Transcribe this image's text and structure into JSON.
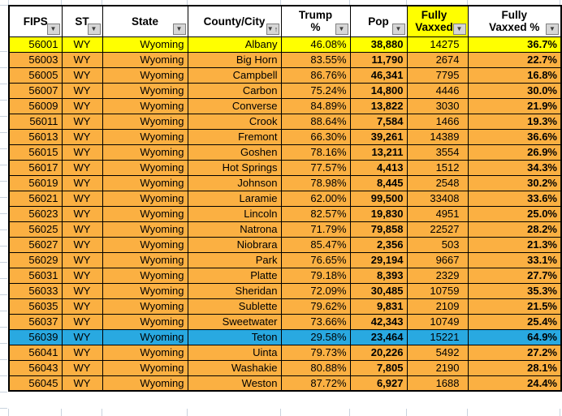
{
  "table": {
    "headers": [
      {
        "id": "fips",
        "lines": [
          "FIPS"
        ],
        "sorted": false,
        "highlight": "header_bg"
      },
      {
        "id": "st",
        "lines": [
          "ST"
        ],
        "sorted": false,
        "highlight": "header_bg"
      },
      {
        "id": "state",
        "lines": [
          "State"
        ],
        "sorted": false,
        "highlight": "header_bg"
      },
      {
        "id": "county-city",
        "lines": [
          "County/City"
        ],
        "sorted": true,
        "highlight": "header_bg"
      },
      {
        "id": "trump-pct",
        "lines": [
          "Trump",
          "%"
        ],
        "sorted": false,
        "highlight": "header_bg"
      },
      {
        "id": "pop",
        "lines": [
          "Pop"
        ],
        "sorted": false,
        "highlight": "header_bg"
      },
      {
        "id": "fully-vaxxed",
        "lines": [
          "Fully",
          "Vaxxed"
        ],
        "sorted": false,
        "highlight": "yellow"
      },
      {
        "id": "fully-vaxxed-pct",
        "lines": [
          "Fully",
          "Vaxxed %"
        ],
        "sorted": false,
        "highlight": "header_bg"
      }
    ],
    "rows": [
      {
        "cells": [
          "56001",
          "WY",
          "Wyoming",
          "Albany",
          "46.08%",
          "38,880",
          "14275",
          "36.7%"
        ],
        "highlight": "yellow"
      },
      {
        "cells": [
          "56003",
          "WY",
          "Wyoming",
          "Big Horn",
          "83.55%",
          "11,790",
          "2674",
          "22.7%"
        ],
        "highlight": "orange"
      },
      {
        "cells": [
          "56005",
          "WY",
          "Wyoming",
          "Campbell",
          "86.76%",
          "46,341",
          "7795",
          "16.8%"
        ],
        "highlight": "orange"
      },
      {
        "cells": [
          "56007",
          "WY",
          "Wyoming",
          "Carbon",
          "75.24%",
          "14,800",
          "4446",
          "30.0%"
        ],
        "highlight": "orange"
      },
      {
        "cells": [
          "56009",
          "WY",
          "Wyoming",
          "Converse",
          "84.89%",
          "13,822",
          "3030",
          "21.9%"
        ],
        "highlight": "orange"
      },
      {
        "cells": [
          "56011",
          "WY",
          "Wyoming",
          "Crook",
          "88.64%",
          "7,584",
          "1466",
          "19.3%"
        ],
        "highlight": "orange"
      },
      {
        "cells": [
          "56013",
          "WY",
          "Wyoming",
          "Fremont",
          "66.30%",
          "39,261",
          "14389",
          "36.6%"
        ],
        "highlight": "orange"
      },
      {
        "cells": [
          "56015",
          "WY",
          "Wyoming",
          "Goshen",
          "78.16%",
          "13,211",
          "3554",
          "26.9%"
        ],
        "highlight": "orange"
      },
      {
        "cells": [
          "56017",
          "WY",
          "Wyoming",
          "Hot Springs",
          "77.57%",
          "4,413",
          "1512",
          "34.3%"
        ],
        "highlight": "orange"
      },
      {
        "cells": [
          "56019",
          "WY",
          "Wyoming",
          "Johnson",
          "78.98%",
          "8,445",
          "2548",
          "30.2%"
        ],
        "highlight": "orange"
      },
      {
        "cells": [
          "56021",
          "WY",
          "Wyoming",
          "Laramie",
          "62.00%",
          "99,500",
          "33408",
          "33.6%"
        ],
        "highlight": "orange"
      },
      {
        "cells": [
          "56023",
          "WY",
          "Wyoming",
          "Lincoln",
          "82.57%",
          "19,830",
          "4951",
          "25.0%"
        ],
        "highlight": "orange"
      },
      {
        "cells": [
          "56025",
          "WY",
          "Wyoming",
          "Natrona",
          "71.79%",
          "79,858",
          "22527",
          "28.2%"
        ],
        "highlight": "orange"
      },
      {
        "cells": [
          "56027",
          "WY",
          "Wyoming",
          "Niobrara",
          "85.47%",
          "2,356",
          "503",
          "21.3%"
        ],
        "highlight": "orange"
      },
      {
        "cells": [
          "56029",
          "WY",
          "Wyoming",
          "Park",
          "76.65%",
          "29,194",
          "9667",
          "33.1%"
        ],
        "highlight": "orange"
      },
      {
        "cells": [
          "56031",
          "WY",
          "Wyoming",
          "Platte",
          "79.18%",
          "8,393",
          "2329",
          "27.7%"
        ],
        "highlight": "orange"
      },
      {
        "cells": [
          "56033",
          "WY",
          "Wyoming",
          "Sheridan",
          "72.09%",
          "30,485",
          "10759",
          "35.3%"
        ],
        "highlight": "orange"
      },
      {
        "cells": [
          "56035",
          "WY",
          "Wyoming",
          "Sublette",
          "79.62%",
          "9,831",
          "2109",
          "21.5%"
        ],
        "highlight": "orange"
      },
      {
        "cells": [
          "56037",
          "WY",
          "Wyoming",
          "Sweetwater",
          "73.66%",
          "42,343",
          "10749",
          "25.4%"
        ],
        "highlight": "orange"
      },
      {
        "cells": [
          "56039",
          "WY",
          "Wyoming",
          "Teton",
          "29.58%",
          "23,464",
          "15221",
          "64.9%"
        ],
        "highlight": "blue"
      },
      {
        "cells": [
          "56041",
          "WY",
          "Wyoming",
          "Uinta",
          "79.73%",
          "20,226",
          "5492",
          "27.2%"
        ],
        "highlight": "orange"
      },
      {
        "cells": [
          "56043",
          "WY",
          "Wyoming",
          "Washakie",
          "80.88%",
          "7,805",
          "2190",
          "28.1%"
        ],
        "highlight": "orange"
      },
      {
        "cells": [
          "56045",
          "WY",
          "Wyoming",
          "Weston",
          "87.72%",
          "6,927",
          "1688",
          "24.4%"
        ],
        "highlight": "orange"
      }
    ]
  },
  "icons": {
    "filter_dropdown": "▼",
    "sort_ascending": "↑"
  },
  "colors": {
    "yellow": "#FFFF00",
    "orange": "#FBB042",
    "blue": "#29A9E1",
    "header_bg": "#FFFFFF"
  }
}
